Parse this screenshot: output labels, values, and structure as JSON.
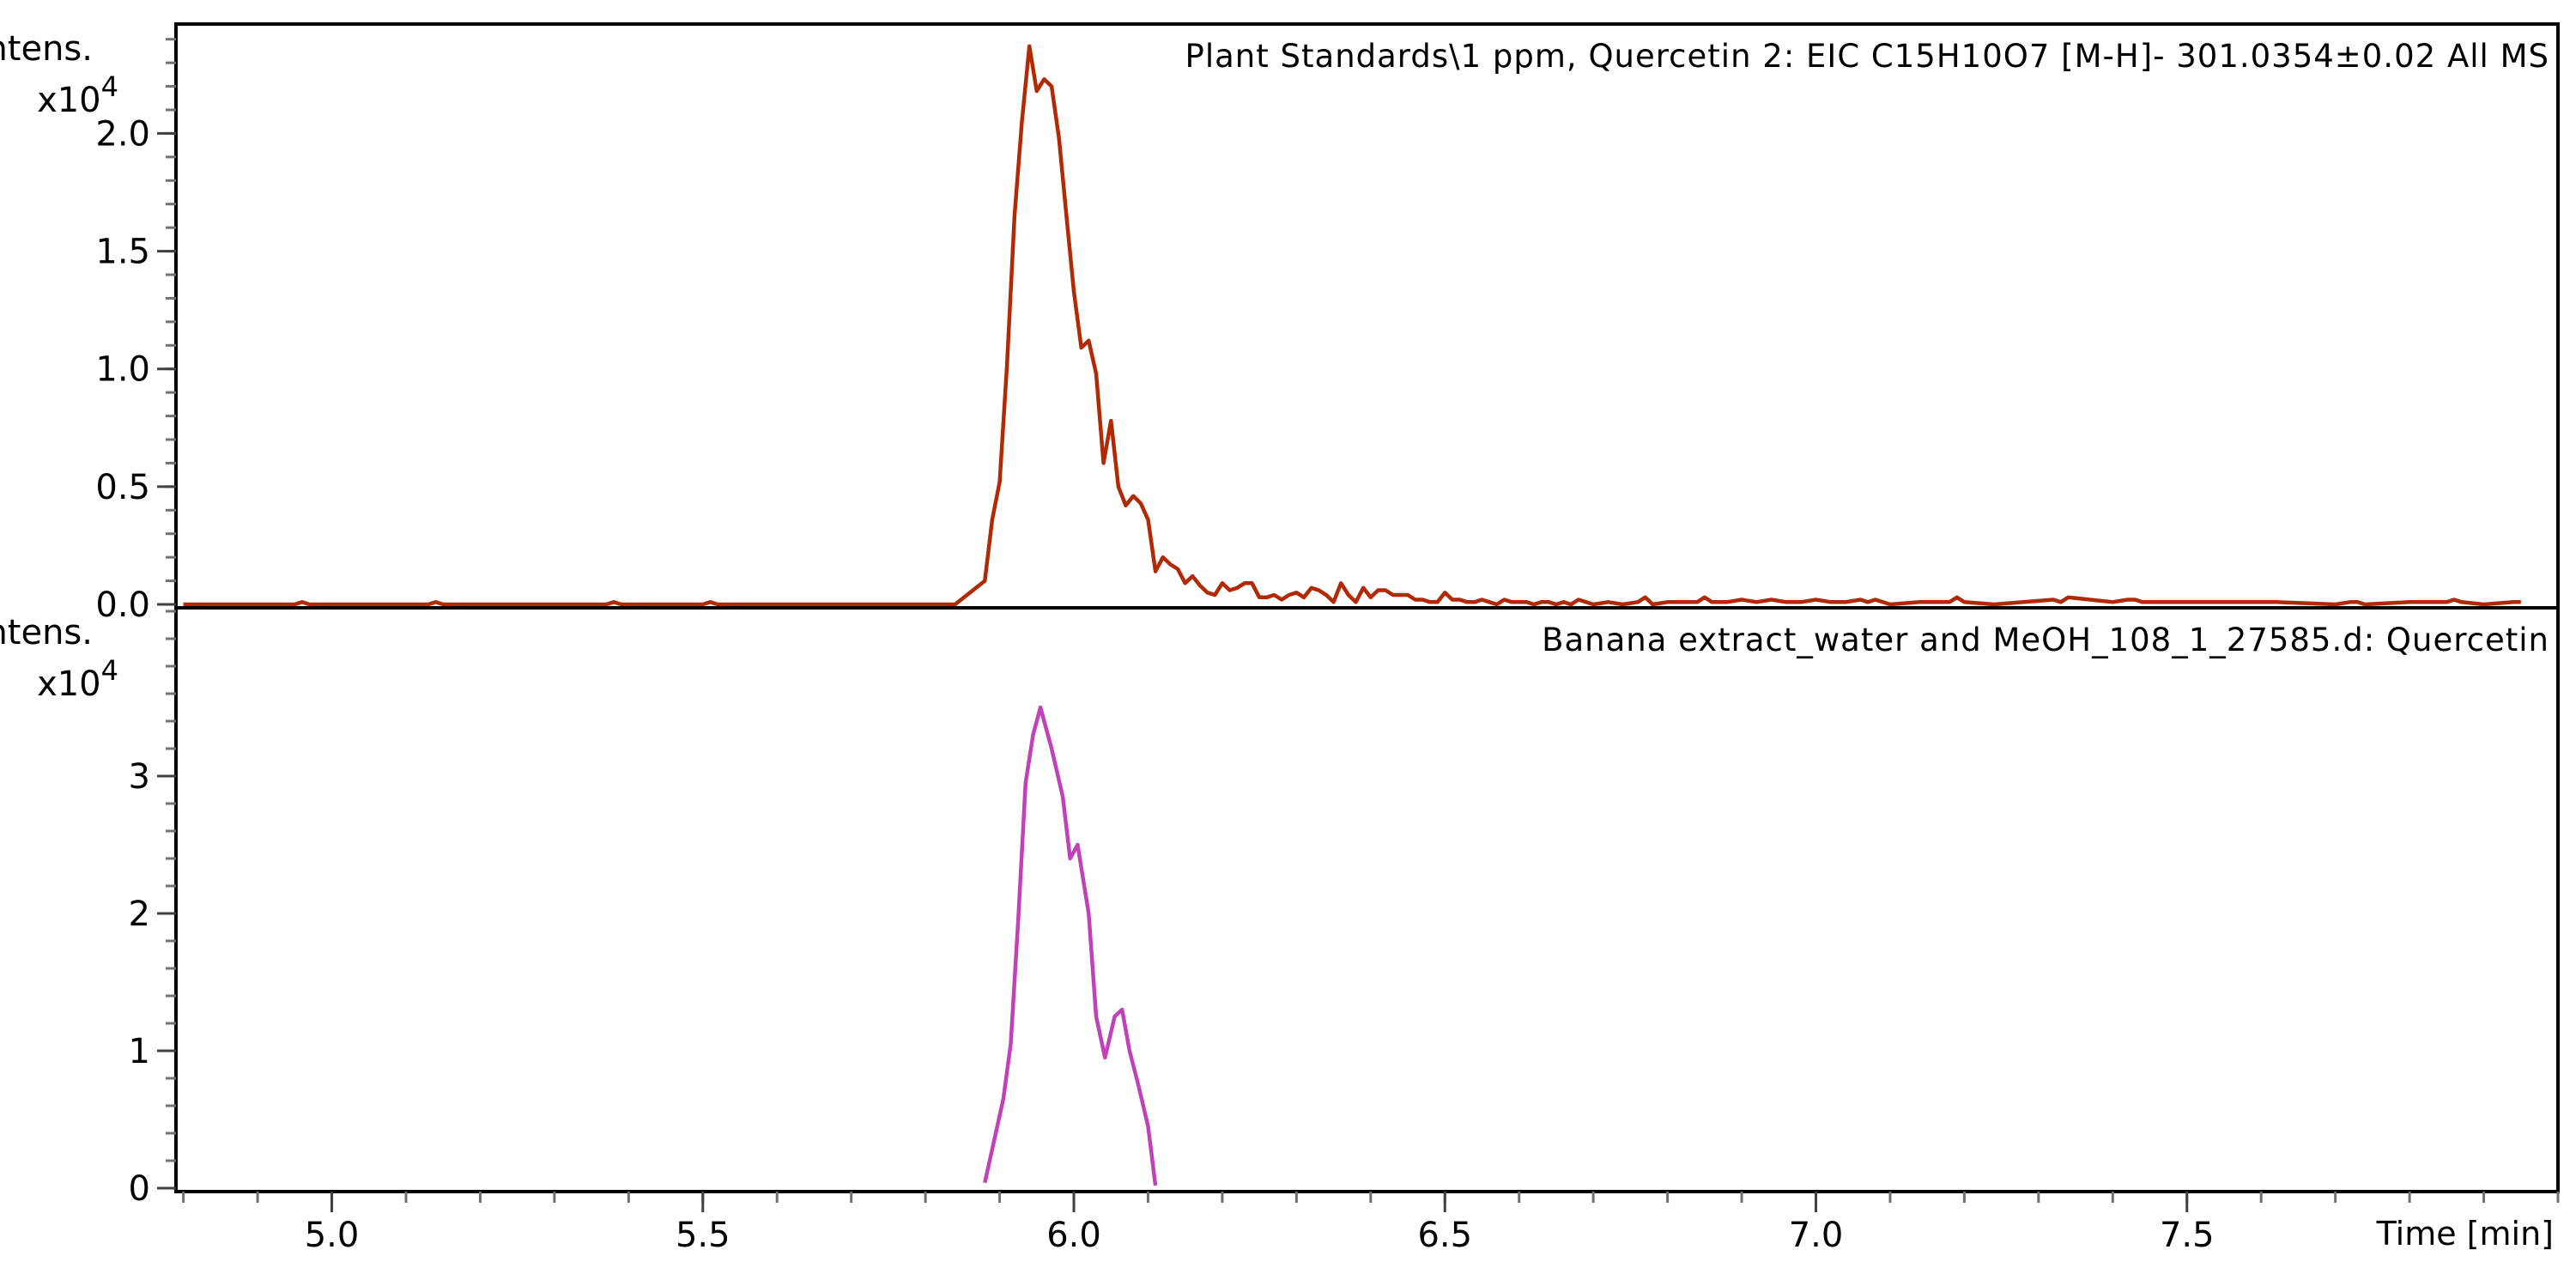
{
  "chart_data": [
    {
      "type": "line",
      "title": "Plant Standards\\1 ppm, Quercetin 2: EIC C15H10O7 [M-H]- 301.0354±0.02 All MS",
      "ylabel": "Intens.",
      "yscale_label": "x10",
      "yscale_exp": "4",
      "ylim": [
        0,
        2.45
      ],
      "yticks": [
        0.0,
        0.5,
        1.0,
        1.5,
        2.0
      ],
      "ytick_labels": [
        "0.0",
        "0.5",
        "1.0",
        "1.5",
        "2.0"
      ],
      "color": "#b22a05",
      "series": [
        {
          "x": [
            4.8,
            4.95,
            4.96,
            4.97,
            5.13,
            5.14,
            5.15,
            5.37,
            5.38,
            5.39,
            5.5,
            5.51,
            5.52,
            5.84,
            5.86,
            5.88,
            5.89,
            5.9,
            5.91,
            5.92,
            5.93,
            5.94,
            5.95,
            5.96,
            5.97,
            5.98,
            5.99,
            6.0,
            6.01,
            6.02,
            6.03,
            6.04,
            6.05,
            6.06,
            6.07,
            6.08,
            6.09,
            6.1,
            6.11,
            6.12,
            6.13,
            6.14,
            6.15,
            6.16,
            6.17,
            6.18,
            6.19,
            6.2,
            6.21,
            6.22,
            6.23,
            6.24,
            6.25,
            6.26,
            6.27,
            6.28,
            6.29,
            6.3,
            6.31,
            6.32,
            6.33,
            6.34,
            6.35,
            6.36,
            6.37,
            6.38,
            6.39,
            6.4,
            6.41,
            6.42,
            6.43,
            6.44,
            6.45,
            6.46,
            6.47,
            6.48,
            6.49,
            6.5,
            6.51,
            6.52,
            6.53,
            6.54,
            6.55,
            6.56,
            6.57,
            6.58,
            6.59,
            6.6,
            6.61,
            6.62,
            6.63,
            6.64,
            6.65,
            6.66,
            6.67,
            6.68,
            6.7,
            6.72,
            6.74,
            6.76,
            6.77,
            6.78,
            6.8,
            6.84,
            6.85,
            6.86,
            6.88,
            6.9,
            6.92,
            6.94,
            6.96,
            6.98,
            7.0,
            7.02,
            7.04,
            7.06,
            7.07,
            7.08,
            7.1,
            7.14,
            7.18,
            7.19,
            7.2,
            7.24,
            7.28,
            7.32,
            7.33,
            7.34,
            7.4,
            7.42,
            7.43,
            7.44,
            7.5,
            7.56,
            7.62,
            7.7,
            7.72,
            7.73,
            7.74,
            7.8,
            7.85,
            7.86,
            7.87,
            7.9,
            7.94,
            7.95
          ],
          "values": [
            0,
            0,
            0.01,
            0,
            0,
            0.01,
            0,
            0,
            0.01,
            0,
            0,
            0.01,
            0,
            0,
            0.05,
            0.1,
            0.36,
            0.52,
            1.02,
            1.65,
            2.05,
            2.37,
            2.18,
            2.23,
            2.2,
            1.98,
            1.65,
            1.33,
            1.09,
            1.12,
            0.98,
            0.6,
            0.78,
            0.5,
            0.42,
            0.46,
            0.43,
            0.36,
            0.14,
            0.2,
            0.17,
            0.15,
            0.09,
            0.12,
            0.08,
            0.05,
            0.04,
            0.09,
            0.06,
            0.07,
            0.09,
            0.09,
            0.03,
            0.03,
            0.04,
            0.02,
            0.04,
            0.05,
            0.03,
            0.07,
            0.06,
            0.04,
            0.01,
            0.09,
            0.04,
            0.01,
            0.07,
            0.03,
            0.06,
            0.06,
            0.04,
            0.04,
            0.04,
            0.02,
            0.02,
            0.01,
            0.01,
            0.05,
            0.02,
            0.02,
            0.01,
            0.01,
            0.02,
            0.01,
            0,
            0.02,
            0.01,
            0.01,
            0.01,
            0,
            0.01,
            0.01,
            0,
            0.01,
            0,
            0.02,
            0,
            0.01,
            0,
            0.01,
            0.03,
            0,
            0.01,
            0.01,
            0.03,
            0.01,
            0.01,
            0.02,
            0.01,
            0.02,
            0.01,
            0.01,
            0.02,
            0.01,
            0.01,
            0.02,
            0.01,
            0.02,
            0,
            0.01,
            0.01,
            0.03,
            0.01,
            0,
            0.01,
            0.02,
            0.01,
            0.03,
            0.01,
            0.02,
            0.02,
            0.01,
            0.01,
            0.01,
            0.01,
            0,
            0.01,
            0.01,
            0,
            0.01,
            0.01,
            0.02,
            0.01,
            0,
            0.01,
            0.01
          ]
        }
      ]
    },
    {
      "type": "line",
      "title": "Banana extract_water and MeOH_108_1_27585.d: Quercetin",
      "ylabel": "Intens.",
      "yscale_label": "x10",
      "yscale_exp": "4",
      "ylim": [
        0,
        4.2
      ],
      "yticks": [
        0,
        1,
        2,
        3
      ],
      "ytick_labels": [
        "0",
        "1",
        "2",
        "3"
      ],
      "color": "#c041b8",
      "series": [
        {
          "x": [
            5.88,
            5.905,
            5.915,
            5.925,
            5.935,
            5.945,
            5.955,
            5.97,
            5.985,
            5.995,
            6.005,
            6.02,
            6.03,
            6.042,
            6.055,
            6.065,
            6.075,
            6.087,
            6.1,
            6.11
          ],
          "values": [
            0.04,
            0.65,
            1.05,
            1.95,
            2.95,
            3.3,
            3.5,
            3.2,
            2.85,
            2.4,
            2.5,
            2.0,
            1.25,
            0.95,
            1.25,
            1.3,
            1.0,
            0.75,
            0.45,
            0.02
          ]
        }
      ]
    }
  ],
  "shared_x": {
    "xlabel": "Time [min]",
    "xlim": [
      4.79,
      8.0
    ],
    "xticks": [
      5.0,
      5.5,
      6.0,
      6.5,
      7.0,
      7.5
    ],
    "xtick_labels": [
      "5.0",
      "5.5",
      "6.0",
      "6.5",
      "7.0",
      "7.5"
    ]
  }
}
